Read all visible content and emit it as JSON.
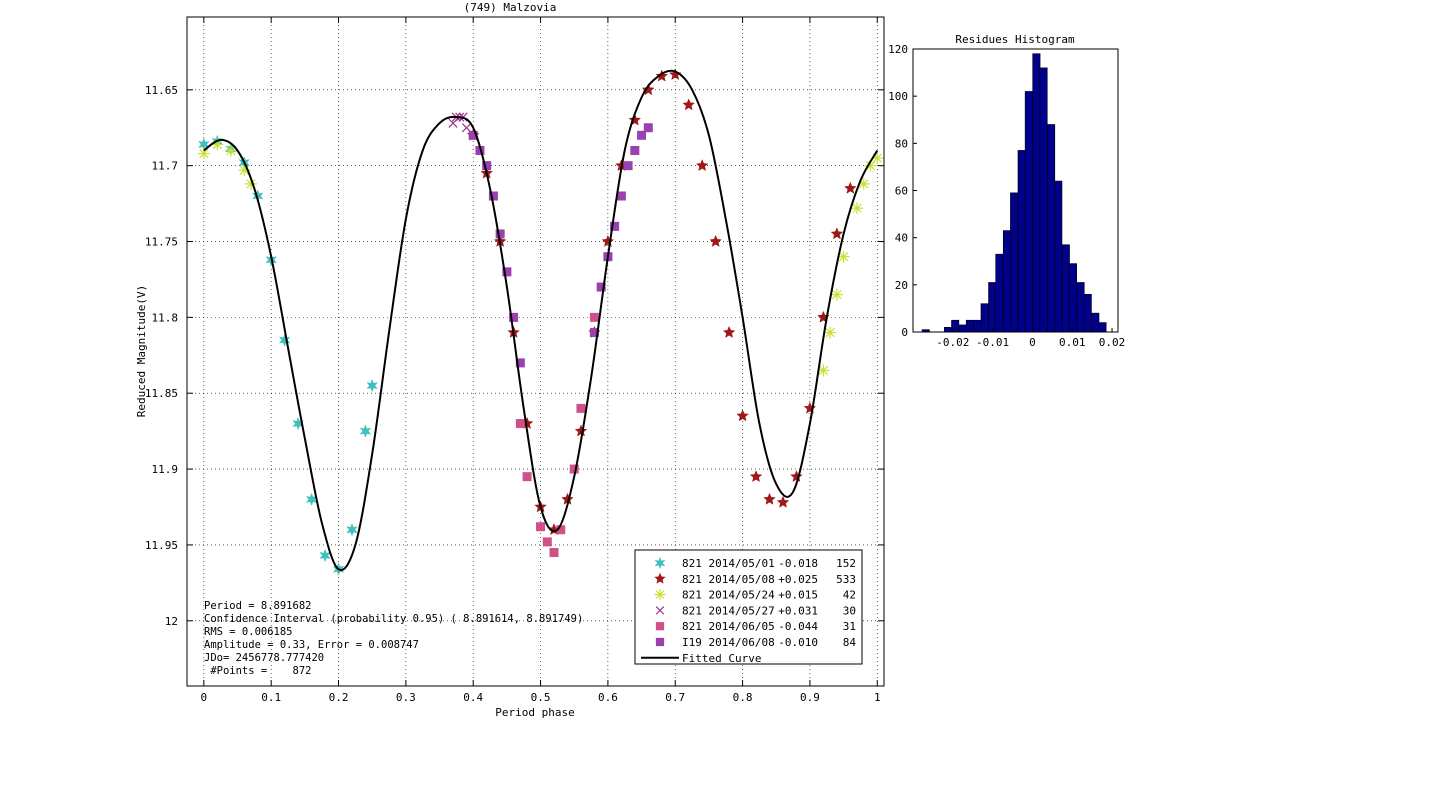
{
  "chart_data": [
    {
      "type": "scatter",
      "title": "(749) Malzovia",
      "xlabel": "Period phase",
      "ylabel": "Reduced Magnitude(V)",
      "xlim": [
        -0.025,
        1.01
      ],
      "ylim": [
        12.043,
        11.602
      ],
      "y_reversed": true,
      "grid": true,
      "xticks": [
        0,
        0.1,
        0.2,
        0.3,
        0.4,
        0.5,
        0.6,
        0.7,
        0.8,
        0.9,
        1
      ],
      "xtick_labels": [
        "0",
        "0.1",
        "0.2",
        "0.3",
        "0.4",
        "0.5",
        "0.6",
        "0.7",
        "0.8",
        "0.9",
        "1"
      ],
      "yticks": [
        11.65,
        11.7,
        11.75,
        11.8,
        11.85,
        11.9,
        11.95,
        12
      ],
      "ytick_labels": [
        "11.65",
        "11.7",
        "11.75",
        "11.8",
        "11.85",
        "11.9",
        "11.95",
        "12"
      ],
      "legend_position": "bottom-right",
      "series": [
        {
          "name": "821 2014/05/01",
          "offset": "-0.018",
          "count": "152",
          "color": "#3fbfbf",
          "marker": "hexagram",
          "x": [
            0.0,
            0.02,
            0.04,
            0.06,
            0.08,
            0.1,
            0.12,
            0.14,
            0.16,
            0.18,
            0.2,
            0.22,
            0.24,
            0.25
          ],
          "y": [
            11.686,
            11.684,
            11.689,
            11.698,
            11.72,
            11.762,
            11.815,
            11.87,
            11.92,
            11.957,
            11.966,
            11.94,
            11.875,
            11.845
          ]
        },
        {
          "name": "821 2014/05/08",
          "offset": "+0.025",
          "count": "533",
          "color": "#a01818",
          "marker": "pentagram",
          "x": [
            0.4,
            0.42,
            0.44,
            0.46,
            0.48,
            0.5,
            0.52,
            0.54,
            0.56,
            0.58,
            0.6,
            0.62,
            0.64,
            0.66,
            0.68,
            0.7,
            0.72,
            0.74,
            0.76,
            0.78,
            0.8,
            0.82,
            0.84,
            0.86,
            0.88,
            0.9,
            0.92,
            0.94,
            0.96
          ],
          "y": [
            11.68,
            11.705,
            11.75,
            11.81,
            11.87,
            11.925,
            11.94,
            11.92,
            11.875,
            11.81,
            11.75,
            11.7,
            11.67,
            11.65,
            11.641,
            11.64,
            11.66,
            11.7,
            11.75,
            11.81,
            11.865,
            11.905,
            11.92,
            11.922,
            11.905,
            11.86,
            11.8,
            11.745,
            11.715
          ]
        },
        {
          "name": "821 2014/05/24",
          "offset": "+0.015",
          "count": "42",
          "color": "#c8e032",
          "marker": "asterisk",
          "x": [
            0.0,
            0.02,
            0.04,
            0.06,
            0.07,
            0.92,
            0.93,
            0.94,
            0.95,
            0.97,
            0.98,
            0.99,
            1.0
          ],
          "y": [
            11.692,
            11.686,
            11.69,
            11.703,
            11.712,
            11.835,
            11.81,
            11.785,
            11.76,
            11.728,
            11.712,
            11.7,
            11.695
          ]
        },
        {
          "name": "821 2014/05/27",
          "offset": "+0.031",
          "count": "30",
          "color": "#a03090",
          "marker": "x",
          "x": [
            0.37,
            0.375,
            0.38,
            0.385,
            0.39
          ],
          "y": [
            11.672,
            11.668,
            11.668,
            11.668,
            11.675
          ]
        },
        {
          "name": "821 2014/06/05",
          "offset": "-0.044",
          "count": "31",
          "color": "#d0508a",
          "marker": "square",
          "x": [
            0.47,
            0.48,
            0.5,
            0.51,
            0.52,
            0.53,
            0.55,
            0.56,
            0.58
          ],
          "y": [
            11.87,
            11.905,
            11.938,
            11.948,
            11.955,
            11.94,
            11.9,
            11.86,
            11.8
          ]
        },
        {
          "name": "I19 2014/06/08",
          "offset": "-0.010",
          "count": "84",
          "color": "#9a40b0",
          "marker": "square",
          "x": [
            0.4,
            0.41,
            0.42,
            0.43,
            0.44,
            0.45,
            0.46,
            0.47,
            0.58,
            0.59,
            0.6,
            0.61,
            0.62,
            0.63,
            0.64,
            0.65,
            0.66
          ],
          "y": [
            11.68,
            11.69,
            11.7,
            11.72,
            11.745,
            11.77,
            11.8,
            11.83,
            11.81,
            11.78,
            11.76,
            11.74,
            11.72,
            11.7,
            11.69,
            11.68,
            11.675
          ]
        }
      ],
      "fitted_curve": {
        "name": "Fitted Curve",
        "color": "#000000",
        "x": [
          0.0,
          0.025,
          0.05,
          0.075,
          0.1,
          0.125,
          0.15,
          0.175,
          0.2,
          0.225,
          0.25,
          0.275,
          0.3,
          0.325,
          0.35,
          0.375,
          0.4,
          0.425,
          0.45,
          0.475,
          0.5,
          0.525,
          0.55,
          0.575,
          0.6,
          0.625,
          0.65,
          0.675,
          0.7,
          0.725,
          0.75,
          0.775,
          0.8,
          0.825,
          0.85,
          0.875,
          0.9,
          0.925,
          0.95,
          0.975,
          1.0
        ],
        "y": [
          11.69,
          11.683,
          11.69,
          11.715,
          11.76,
          11.82,
          11.88,
          11.935,
          11.966,
          11.95,
          11.89,
          11.81,
          11.735,
          11.69,
          11.672,
          11.668,
          11.675,
          11.715,
          11.78,
          11.86,
          11.925,
          11.94,
          11.905,
          11.84,
          11.76,
          11.69,
          11.655,
          11.641,
          11.638,
          11.65,
          11.68,
          11.735,
          11.8,
          11.87,
          11.91,
          11.915,
          11.87,
          11.8,
          11.745,
          11.71,
          11.69
        ]
      },
      "fit_info": [
        "Period =  8.891682",
        "Confidence Interval (probability 0.95) ( 8.891614,  8.891749)",
        "RMS = 0.006185",
        "Amplitude = 0.33, Error =   0.008747",
        "JDo= 2456778.777420",
        " #Points =    872"
      ]
    },
    {
      "type": "bar",
      "title": "Residues Histogram",
      "color": "#00008b",
      "xlim": [
        -0.03,
        0.0215
      ],
      "ylim": [
        0,
        120
      ],
      "xticks": [
        -0.02,
        -0.01,
        0,
        0.01,
        0.02
      ],
      "xtick_labels": [
        "-0.02",
        "-0.01",
        "0",
        "0.01",
        "0.02"
      ],
      "yticks": [
        0,
        20,
        40,
        60,
        80,
        100,
        120
      ],
      "ytick_labels": [
        "0",
        "20",
        "40",
        "60",
        "80",
        "100",
        "120"
      ],
      "bin_width": 0.00185,
      "bin_centers": [
        -0.0268,
        -0.0249,
        -0.0231,
        -0.0212,
        -0.0194,
        -0.0175,
        -0.0157,
        -0.0138,
        -0.012,
        -0.0101,
        -0.0083,
        -0.0064,
        -0.0046,
        -0.0027,
        -0.0009,
        0.001,
        0.0028,
        0.0047,
        0.0065,
        0.0084,
        0.0102,
        0.0121,
        0.0139,
        0.0158,
        0.0176
      ],
      "counts": [
        1,
        0,
        0,
        2,
        5,
        3,
        5,
        5,
        12,
        21,
        33,
        43,
        59,
        77,
        102,
        118,
        112,
        88,
        64,
        37,
        29,
        21,
        16,
        8,
        4
      ]
    }
  ]
}
